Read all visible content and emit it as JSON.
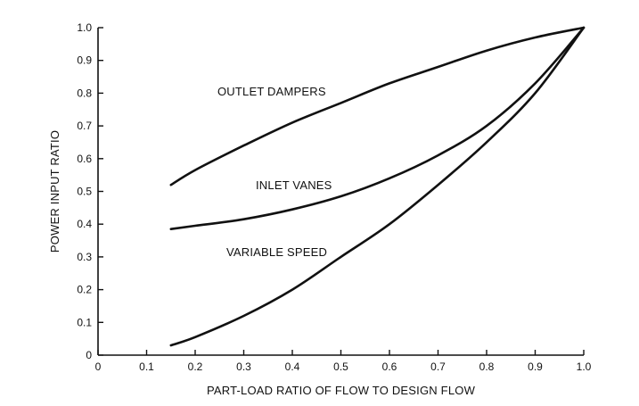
{
  "chart_data": {
    "type": "line",
    "title": "",
    "xlabel": "PART-LOAD RATIO OF FLOW TO DESIGN FLOW",
    "ylabel": "POWER INPUT RATIO",
    "xlim": [
      0,
      1.0
    ],
    "ylim": [
      0,
      1.0
    ],
    "grid": false,
    "legend": "none",
    "x_ticks": [
      "0",
      "0.1",
      "0.2",
      "0.3",
      "0.4",
      "0.5",
      "0.6",
      "0.7",
      "0.8",
      "0.9",
      "1.0"
    ],
    "y_ticks": [
      "0",
      "0.1",
      "0.2",
      "0.3",
      "0.4",
      "0.5",
      "0.6",
      "0.7",
      "0.8",
      "0.9",
      "1.0"
    ],
    "series": [
      {
        "name": "OUTLET DAMPERS",
        "x": [
          0.15,
          0.2,
          0.3,
          0.4,
          0.5,
          0.6,
          0.7,
          0.8,
          0.9,
          1.0
        ],
        "y": [
          0.52,
          0.565,
          0.64,
          0.71,
          0.77,
          0.83,
          0.88,
          0.93,
          0.97,
          1.0
        ]
      },
      {
        "name": "INLET VANES",
        "x": [
          0.15,
          0.2,
          0.3,
          0.4,
          0.5,
          0.6,
          0.7,
          0.8,
          0.9,
          1.0
        ],
        "y": [
          0.385,
          0.395,
          0.415,
          0.445,
          0.485,
          0.54,
          0.61,
          0.7,
          0.83,
          1.0
        ]
      },
      {
        "name": "VARIABLE SPEED",
        "x": [
          0.15,
          0.2,
          0.3,
          0.4,
          0.5,
          0.6,
          0.7,
          0.8,
          0.9,
          1.0
        ],
        "y": [
          0.03,
          0.055,
          0.12,
          0.2,
          0.3,
          0.4,
          0.52,
          0.65,
          0.8,
          1.0
        ]
      }
    ]
  }
}
